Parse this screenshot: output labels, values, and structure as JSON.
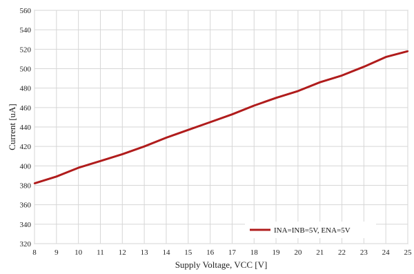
{
  "chart_data": {
    "type": "line",
    "title": "",
    "xlabel": "Supply Voltage, VCC [V]",
    "ylabel": "Current  [uA]",
    "xlim": [
      8,
      25
    ],
    "ylim": [
      320,
      560
    ],
    "x_ticks": [
      8,
      9,
      10,
      11,
      12,
      13,
      14,
      15,
      16,
      17,
      18,
      19,
      20,
      21,
      22,
      23,
      24,
      25
    ],
    "y_ticks": [
      320,
      340,
      360,
      380,
      400,
      420,
      440,
      460,
      480,
      500,
      520,
      540,
      560
    ],
    "grid": true,
    "legend_position": "bottom-right",
    "series": [
      {
        "name": "INA=INB=5V, ENA=5V",
        "color": "#b01c1c",
        "x": [
          8,
          9,
          10,
          11,
          12,
          13,
          14,
          15,
          16,
          17,
          18,
          19,
          20,
          21,
          22,
          23,
          24,
          25
        ],
        "y": [
          382,
          389,
          398,
          405,
          412,
          420,
          429,
          437,
          445,
          453,
          462,
          470,
          477,
          486,
          493,
          502,
          512,
          518
        ]
      }
    ]
  }
}
